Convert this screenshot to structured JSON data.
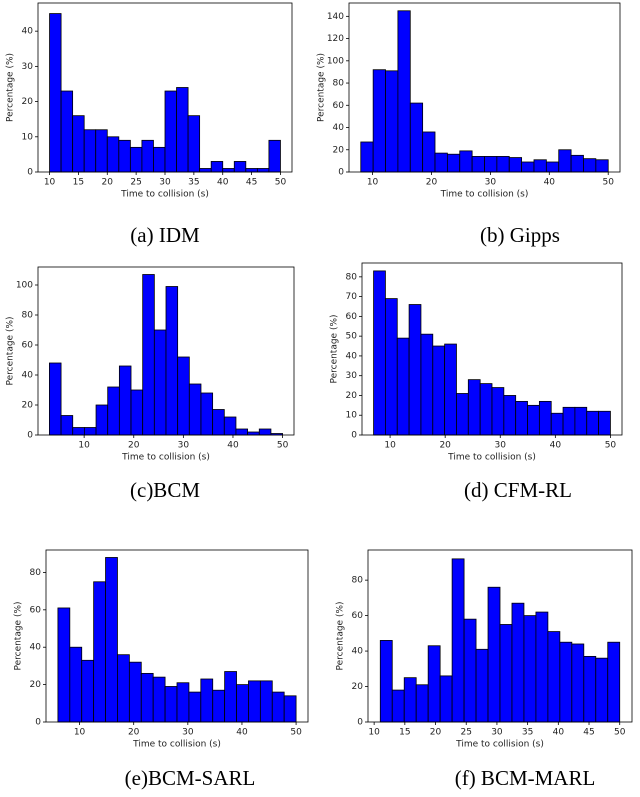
{
  "chart_data": [
    {
      "type": "histogram",
      "caption": "(a) IDM",
      "xlabel": "Time to collision (s)",
      "ylabel": "Percentage (%)",
      "color": "#0000ff",
      "edgecolor": "#000000",
      "bins": [
        10,
        12,
        14,
        16,
        18,
        20,
        22,
        24,
        26,
        28,
        30,
        32,
        34,
        36,
        38,
        40,
        42,
        44,
        46,
        48,
        50
      ],
      "values": [
        45,
        23,
        16,
        12,
        12,
        10,
        9,
        7,
        9,
        7,
        23,
        24,
        16,
        1,
        3,
        1,
        3,
        1,
        1,
        9
      ],
      "xlim": [
        8,
        52
      ],
      "ylim": [
        0,
        48
      ],
      "xticks": [
        10,
        15,
        20,
        25,
        30,
        35,
        40,
        45,
        50
      ],
      "yticks": [
        0,
        10,
        20,
        30,
        40
      ]
    },
    {
      "type": "histogram",
      "caption": "(b) Gipps",
      "xlabel": "Time to collision (s)",
      "ylabel": "Percentage (%)",
      "color": "#0000ff",
      "edgecolor": "#000000",
      "bins": [
        8,
        10.1,
        12.2,
        14.3,
        16.4,
        18.5,
        20.6,
        22.7,
        24.8,
        26.9,
        29,
        31.1,
        33.2,
        35.3,
        37.4,
        39.5,
        41.6,
        43.7,
        45.8,
        47.9,
        50
      ],
      "values": [
        27,
        92,
        91,
        145,
        62,
        36,
        17,
        16,
        19,
        14,
        14,
        14,
        13,
        9,
        11,
        9,
        20,
        15,
        12,
        11
      ],
      "xlim": [
        6,
        52
      ],
      "ylim": [
        0,
        152
      ],
      "xticks": [
        10,
        20,
        30,
        40,
        50
      ],
      "yticks": [
        0,
        20,
        40,
        60,
        80,
        100,
        120,
        140
      ]
    },
    {
      "type": "histogram",
      "caption": "(c)BCM",
      "xlabel": "Time to collision (s)",
      "ylabel": "Percentage (%)",
      "color": "#0000ff",
      "edgecolor": "#000000",
      "bins": [
        3,
        5.35,
        7.7,
        10.05,
        12.4,
        14.75,
        17.1,
        19.45,
        21.8,
        24.15,
        26.5,
        28.85,
        31.2,
        33.55,
        35.9,
        38.25,
        40.6,
        42.95,
        45.3,
        47.65,
        50
      ],
      "values": [
        48,
        13,
        5,
        5,
        20,
        32,
        46,
        30,
        107,
        70,
        99,
        52,
        34,
        28,
        17,
        12,
        4,
        2,
        4,
        1
      ],
      "xlim": [
        0.7,
        52.3
      ],
      "ylim": [
        0,
        112
      ],
      "xticks": [
        10,
        20,
        30,
        40,
        50
      ],
      "yticks": [
        0,
        20,
        40,
        60,
        80,
        100
      ]
    },
    {
      "type": "histogram",
      "caption": "(d) CFM-RL",
      "xlabel": "Time to collision (s)",
      "ylabel": "Percentage (%)",
      "color": "#0000ff",
      "edgecolor": "#000000",
      "bins": [
        7,
        9.15,
        11.3,
        13.45,
        15.6,
        17.75,
        19.9,
        22.05,
        24.2,
        26.35,
        28.5,
        30.65,
        32.8,
        34.95,
        37.1,
        39.25,
        41.4,
        43.55,
        45.7,
        47.85,
        50
      ],
      "values": [
        83,
        69,
        49,
        66,
        51,
        45,
        46,
        21,
        28,
        26,
        24,
        20,
        17,
        15,
        17,
        11,
        14,
        14,
        12,
        12
      ],
      "xlim": [
        4.9,
        52.1
      ],
      "ylim": [
        0,
        87
      ],
      "xticks": [
        10,
        20,
        30,
        40,
        50
      ],
      "yticks": [
        0,
        10,
        20,
        30,
        40,
        50,
        60,
        70,
        80
      ]
    },
    {
      "type": "histogram",
      "caption": "(e)BCM-SARL",
      "xlabel": "Time to collision (s)",
      "ylabel": "Percentage (%)",
      "color": "#0000ff",
      "edgecolor": "#000000",
      "bins": [
        6,
        8.2,
        10.4,
        12.6,
        14.8,
        17,
        19.2,
        21.4,
        23.6,
        25.8,
        28,
        30.2,
        32.4,
        34.6,
        36.8,
        39,
        41.2,
        43.4,
        45.6,
        47.8,
        50
      ],
      "values": [
        61,
        40,
        33,
        75,
        88,
        36,
        32,
        26,
        24,
        19,
        21,
        16,
        23,
        17,
        27,
        20,
        22,
        22,
        16,
        14
      ],
      "xlim": [
        3.8,
        52.2
      ],
      "ylim": [
        0,
        92
      ],
      "xticks": [
        10,
        20,
        30,
        40,
        50
      ],
      "yticks": [
        0,
        20,
        40,
        60,
        80
      ]
    },
    {
      "type": "histogram",
      "caption": "(f) BCM-MARL",
      "xlabel": "Time to collision (s)",
      "ylabel": "Percentage (%)",
      "color": "#0000ff",
      "edgecolor": "#000000",
      "bins": [
        11,
        12.95,
        14.9,
        16.85,
        18.8,
        20.75,
        22.7,
        24.65,
        26.6,
        28.55,
        30.5,
        32.45,
        34.4,
        36.35,
        38.3,
        40.25,
        42.2,
        44.15,
        46.1,
        48.05,
        50
      ],
      "values": [
        46,
        18,
        25,
        21,
        43,
        26,
        92,
        58,
        41,
        76,
        55,
        67,
        60,
        62,
        51,
        45,
        44,
        37,
        36,
        45
      ],
      "xlim": [
        9,
        52
      ],
      "ylim": [
        0,
        97
      ],
      "xticks": [
        10,
        15,
        20,
        25,
        30,
        35,
        40,
        45,
        50
      ],
      "yticks": [
        0,
        20,
        40,
        60,
        80
      ]
    }
  ]
}
